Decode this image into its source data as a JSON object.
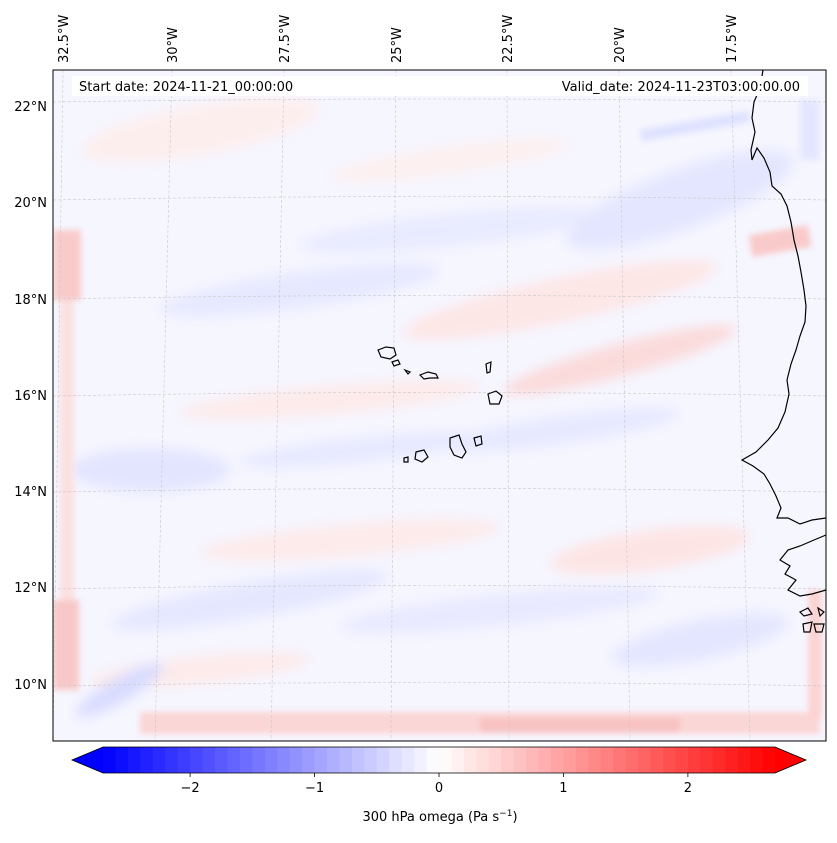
{
  "map": {
    "start_date": "Start date: 2024-11-21_00:00:00",
    "valid_date": "Valid_date: 2024-11-23T03:00:00.00",
    "lon_labels": [
      "32.5°W",
      "30°W",
      "27.5°W",
      "25°W",
      "22.5°W",
      "20°W",
      "17.5°W"
    ],
    "lat_labels": [
      "22°N",
      "20°N",
      "18°N",
      "16°N",
      "14°N",
      "12°N",
      "10°N"
    ]
  },
  "colorbar": {
    "label": "300 hPa omega (Pa s",
    "label_sup": "−1",
    "label_end": ")",
    "ticks": [
      "−2",
      "−1",
      "0",
      "1",
      "2"
    ],
    "min": -2.7,
    "max": 2.7,
    "tick_values": [
      -2,
      -1,
      0,
      1,
      2
    ],
    "low_color": "#0000ff",
    "mid_color": "#ffffff",
    "high_color": "#ff0000"
  }
}
